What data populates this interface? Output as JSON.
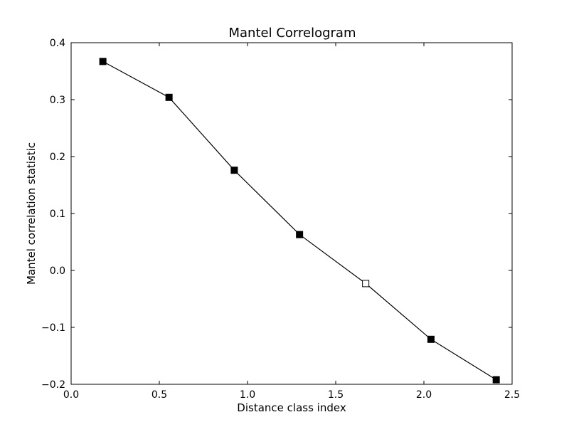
{
  "chart_data": {
    "type": "line",
    "title": "Mantel Correlogram",
    "xlabel": "Distance class index",
    "ylabel": "Mantel correlation statistic",
    "xlim": [
      0.0,
      2.5
    ],
    "ylim": [
      -0.2,
      0.4
    ],
    "xticks": [
      "0.0",
      "0.5",
      "1.0",
      "1.5",
      "2.0",
      "2.5"
    ],
    "yticks": [
      "−0.2",
      "−0.1",
      "0.0",
      "0.1",
      "0.2",
      "0.3",
      "0.4"
    ],
    "grid": false,
    "series": [
      {
        "line_color": "#000000",
        "marker": "square",
        "points": [
          {
            "x": 0.18,
            "y": 0.367,
            "filled": true
          },
          {
            "x": 0.555,
            "y": 0.304,
            "filled": true
          },
          {
            "x": 0.925,
            "y": 0.176,
            "filled": true
          },
          {
            "x": 1.295,
            "y": 0.063,
            "filled": true
          },
          {
            "x": 1.67,
            "y": -0.023,
            "filled": false
          },
          {
            "x": 2.04,
            "y": -0.121,
            "filled": true
          },
          {
            "x": 2.41,
            "y": -0.192,
            "filled": true
          }
        ]
      }
    ]
  }
}
